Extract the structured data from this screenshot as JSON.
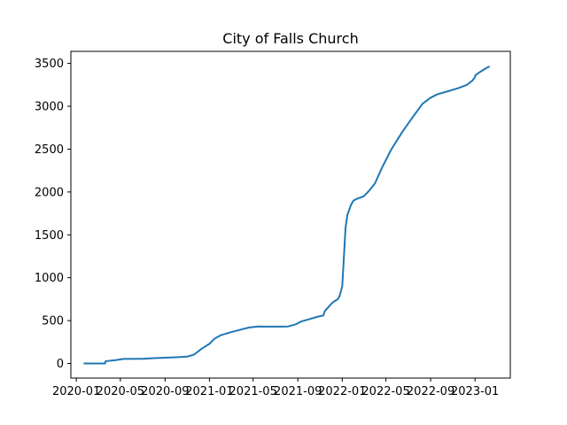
{
  "chart_data": {
    "type": "line",
    "title": "City of Falls Church",
    "xlabel": "",
    "ylabel": "",
    "x_type": "date",
    "xlim": [
      "2019-12-17",
      "2023-04-08"
    ],
    "ylim": [
      -170,
      3640
    ],
    "grid": false,
    "legend": "none",
    "x_ticks": [
      {
        "date": "2020-01-01",
        "label": "2020-01"
      },
      {
        "date": "2020-05-01",
        "label": "2020-05"
      },
      {
        "date": "2020-09-01",
        "label": "2020-09"
      },
      {
        "date": "2021-01-01",
        "label": "2021-01"
      },
      {
        "date": "2021-05-01",
        "label": "2021-05"
      },
      {
        "date": "2021-09-01",
        "label": "2021-09"
      },
      {
        "date": "2022-01-01",
        "label": "2022-01"
      },
      {
        "date": "2022-05-01",
        "label": "2022-05"
      },
      {
        "date": "2022-09-01",
        "label": "2022-09"
      },
      {
        "date": "2023-01-01",
        "label": "2023-01"
      }
    ],
    "y_ticks": [
      0,
      500,
      1000,
      1500,
      2000,
      2500,
      3000,
      3500
    ],
    "series": [
      {
        "color": "#1f77b4",
        "x": [
          "2020-01-21",
          "2020-03-20",
          "2020-03-21",
          "2020-04-01",
          "2020-04-20",
          "2020-05-10",
          "2020-06-15",
          "2020-07-01",
          "2020-08-01",
          "2020-09-01",
          "2020-10-01",
          "2020-11-01",
          "2020-11-20",
          "2020-12-10",
          "2021-01-01",
          "2021-01-15",
          "2021-02-01",
          "2021-03-01",
          "2021-04-01",
          "2021-04-20",
          "2021-05-15",
          "2021-06-15",
          "2021-07-15",
          "2021-08-05",
          "2021-08-25",
          "2021-09-10",
          "2021-10-01",
          "2021-10-25",
          "2021-11-10",
          "2021-11-14",
          "2021-12-05",
          "2021-12-12",
          "2021-12-20",
          "2021-12-25",
          "2022-01-01",
          "2022-01-05",
          "2022-01-10",
          "2022-01-15",
          "2022-01-25",
          "2022-02-01",
          "2022-02-10",
          "2022-03-01",
          "2022-03-15",
          "2022-04-01",
          "2022-04-20",
          "2022-05-15",
          "2022-06-15",
          "2022-07-15",
          "2022-08-10",
          "2022-09-01",
          "2022-09-20",
          "2022-10-15",
          "2022-11-15",
          "2022-12-10",
          "2022-12-25",
          "2023-01-01",
          "2023-01-02",
          "2023-01-15",
          "2023-01-30",
          "2023-02-10"
        ],
        "y": [
          0,
          0,
          25,
          32,
          40,
          53,
          55,
          55,
          62,
          68,
          73,
          80,
          105,
          170,
          230,
          290,
          330,
          365,
          400,
          420,
          432,
          430,
          430,
          432,
          455,
          490,
          515,
          545,
          560,
          610,
          710,
          730,
          750,
          790,
          900,
          1200,
          1580,
          1730,
          1850,
          1900,
          1920,
          1950,
          2010,
          2100,
          2280,
          2490,
          2700,
          2880,
          3030,
          3100,
          3140,
          3170,
          3210,
          3250,
          3300,
          3340,
          3360,
          3400,
          3440,
          3465
        ]
      }
    ]
  }
}
